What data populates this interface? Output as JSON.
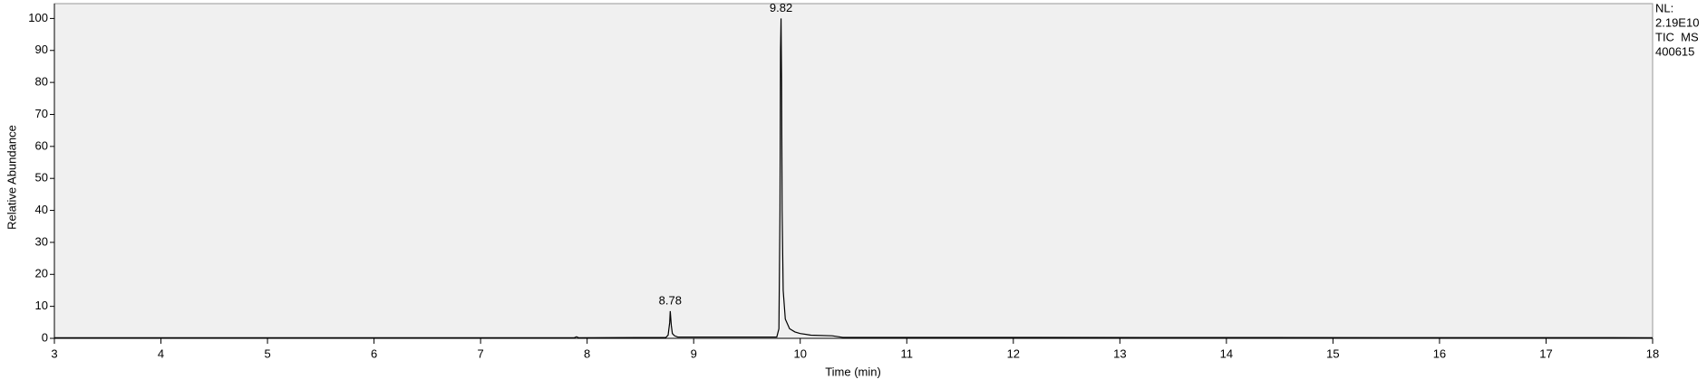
{
  "chart_data": {
    "type": "line",
    "x_label": "Time (min)",
    "y_label": "Relative Abundance",
    "x": [
      3,
      7.88,
      7.9,
      7.92,
      8.74,
      8.76,
      8.775,
      8.78,
      8.79,
      8.8,
      8.82,
      8.85,
      9.78,
      9.8,
      9.81,
      9.815,
      9.82,
      9.825,
      9.83,
      9.84,
      9.86,
      9.9,
      9.95,
      10.0,
      10.1,
      10.3,
      10.4,
      18
    ],
    "values": [
      0.2,
      0.2,
      0.5,
      0.2,
      0.3,
      1,
      5,
      8.5,
      4,
      1.5,
      0.8,
      0.4,
      0.4,
      3,
      40,
      90,
      100,
      80,
      40,
      15,
      6,
      3,
      2,
      1.5,
      1,
      0.8,
      0.3,
      0.2
    ],
    "color": "#000000",
    "peak_labels": [
      {
        "value": 8.78,
        "label": "8.78",
        "y": 8.5
      },
      {
        "value": 9.82,
        "label": "9.82",
        "y": 100
      }
    ],
    "side_labels": [
      "NL:",
      "2.19E10",
      "TIC  MS",
      "400615"
    ],
    "xlim": [
      3,
      18
    ],
    "xticks": [
      3,
      4,
      5,
      6,
      7,
      8,
      9,
      10,
      11,
      12,
      13,
      14,
      15,
      16,
      17,
      18
    ],
    "ylim": [
      0,
      100
    ],
    "yticks": [
      0,
      10,
      20,
      30,
      40,
      50,
      60,
      70,
      80,
      90,
      100
    ]
  }
}
